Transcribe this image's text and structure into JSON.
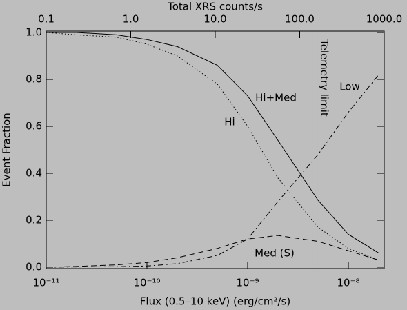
{
  "chart_data": {
    "type": "line",
    "x_label": "Flux (0.5–10 keV) (erg/cm²/s)",
    "x2_label": "Total XRS counts/s",
    "y_label": "Event Fraction",
    "x_scale": "log",
    "x2_scale": "log",
    "xlim": [
      1e-11,
      2.27e-08
    ],
    "xticks": [
      {
        "value": 1e-11,
        "label": "10⁻¹¹"
      },
      {
        "value": 1e-10,
        "label": "10⁻¹⁰"
      },
      {
        "value": 1e-09,
        "label": "10⁻⁹"
      },
      {
        "value": 1e-08,
        "label": "10⁻⁸"
      }
    ],
    "x2lim": [
      0.1,
      1000
    ],
    "x2ticks": [
      0.1,
      {
        "value": 1,
        "label": "1.0"
      },
      {
        "value": 10,
        "label": "10.0"
      },
      {
        "value": 100,
        "label": "100.0"
      },
      {
        "value": 1000,
        "label": "1000.0"
      }
    ],
    "ylim": [
      -0.006,
      1.006
    ],
    "yticks": [
      {
        "value": 0,
        "label": "0.0"
      },
      0.2,
      0.4,
      0.6,
      0.8,
      {
        "value": 1,
        "label": "1.0"
      }
    ],
    "x": [
      1e-11,
      2e-11,
      5e-11,
      1e-10,
      2e-10,
      5e-10,
      1e-09,
      2e-09,
      5e-09,
      1e-08,
      2e-08
    ],
    "series": [
      {
        "name": "Hi+Med",
        "color": "#000000",
        "style": "solid",
        "values": [
          1.0,
          1.0,
          0.99,
          0.97,
          0.94,
          0.86,
          0.73,
          0.54,
          0.285,
          0.14,
          0.06
        ]
      },
      {
        "name": "Hi",
        "color": "#000000",
        "style": "dotted",
        "values": [
          1.0,
          0.99,
          0.98,
          0.95,
          0.9,
          0.78,
          0.6,
          0.38,
          0.17,
          0.08,
          0.03
        ]
      },
      {
        "name": "Med (S)",
        "color": "#000000",
        "style": "dashed",
        "values": [
          0.0,
          0.003,
          0.01,
          0.02,
          0.04,
          0.08,
          0.12,
          0.135,
          0.11,
          0.07,
          0.03
        ]
      },
      {
        "name": "Low",
        "color": "#000000",
        "style": "dashdot",
        "values": [
          0.0,
          0.001,
          0.002,
          0.005,
          0.015,
          0.05,
          0.12,
          0.28,
          0.48,
          0.66,
          0.82
        ]
      }
    ],
    "vline": {
      "label": "Telemetry limit",
      "x2": 160
    }
  }
}
